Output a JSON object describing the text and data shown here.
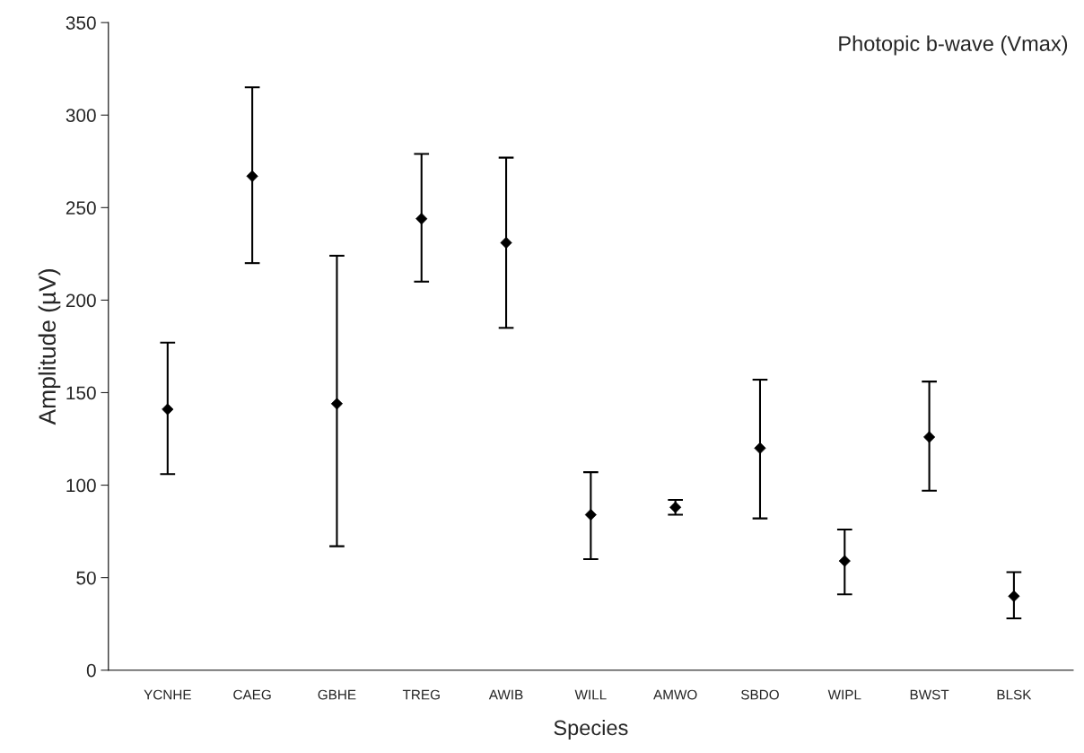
{
  "chart_data": {
    "type": "scatter",
    "title": "Photopic b-wave (Vmax)",
    "xlabel": "Species",
    "ylabel": "Amplitude (µV)",
    "categories": [
      "YCNHE",
      "CAEG",
      "GBHE",
      "TREG",
      "AWIB",
      "WILL",
      "AMWO",
      "SBDO",
      "WIPL",
      "BWST",
      "BLSK"
    ],
    "values": [
      141,
      267,
      144,
      244,
      231,
      84,
      88,
      120,
      59,
      126,
      40
    ],
    "errors": [
      [
        106,
        177
      ],
      [
        220,
        315
      ],
      [
        67,
        224
      ],
      [
        210,
        279
      ],
      [
        185,
        277
      ],
      [
        60,
        107
      ],
      [
        84,
        92
      ],
      [
        82,
        157
      ],
      [
        41,
        76
      ],
      [
        97,
        156
      ],
      [
        28,
        53
      ]
    ],
    "color": "#000000",
    "marker": "diamond",
    "ylim": [
      0,
      350
    ],
    "yticks": [
      0,
      50,
      100,
      150,
      200,
      250,
      300,
      350
    ],
    "grid": false,
    "legend": false
  }
}
